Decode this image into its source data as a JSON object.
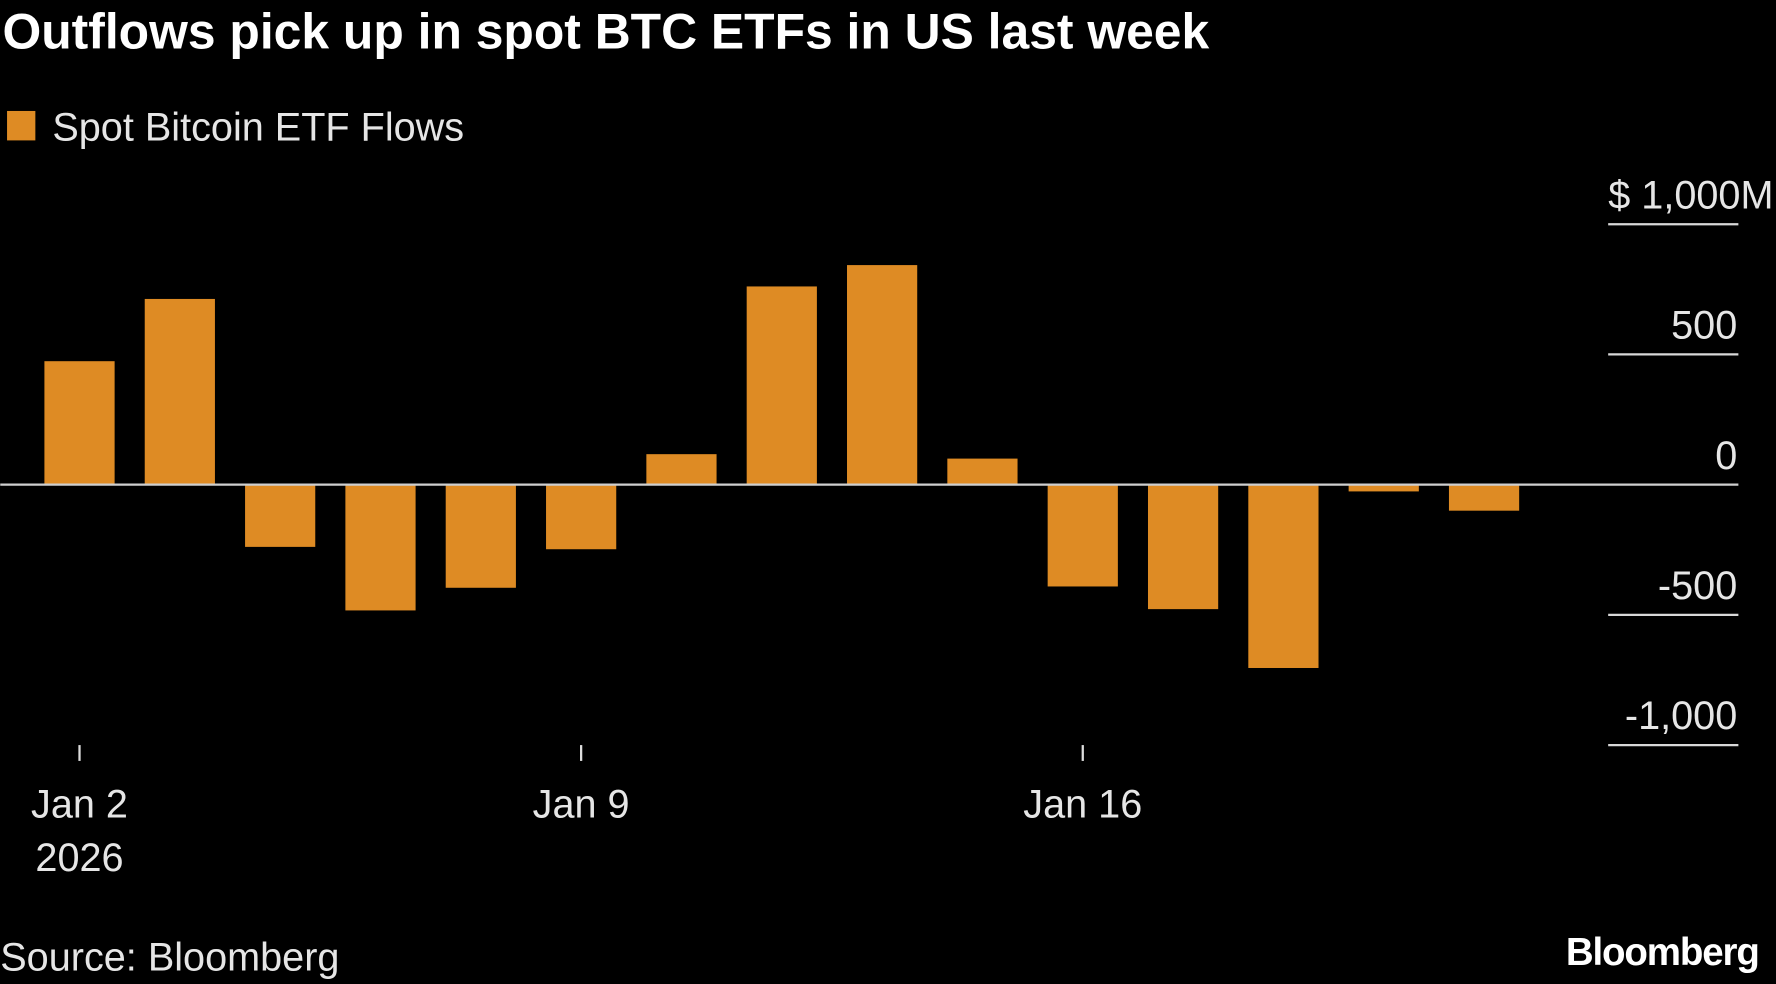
{
  "chart_data": {
    "type": "bar",
    "title": "Outflows pick up in spot BTC ETFs in US last week",
    "legend": [
      {
        "name": "Spot Bitcoin ETF Flows",
        "color": "#de8b24"
      }
    ],
    "legend_placement": "top-left",
    "unit": "$ M",
    "categories": [
      "2026-01-02",
      "2026-01-05",
      "2026-01-06",
      "2026-01-07",
      "2026-01-08",
      "2026-01-09",
      "2026-01-12",
      "2026-01-13",
      "2026-01-14",
      "2026-01-15",
      "2026-01-16",
      "2026-01-20",
      "2026-01-21",
      "2026-01-22",
      "2026-01-23"
    ],
    "series": [
      {
        "name": "Spot Bitcoin ETF Flows",
        "values": [
          474,
          713,
          -239,
          -483,
          -396,
          -248,
          117,
          761,
          843,
          100,
          -391,
          -478,
          -704,
          -26,
          -100
        ]
      }
    ],
    "ylim": [
      -1000,
      1000
    ],
    "y_ticks": [
      {
        "value": 1000,
        "label": "$ 1,000M"
      },
      {
        "value": 500,
        "label": "500"
      },
      {
        "value": 0,
        "label": "0"
      },
      {
        "value": -500,
        "label": "-500"
      },
      {
        "value": -1000,
        "label": "-1,000"
      }
    ],
    "x_ticks": [
      {
        "category": "2026-01-02",
        "label": "Jan 2",
        "sublabel": "2026"
      },
      {
        "category": "2026-01-09",
        "label": "Jan 9",
        "sublabel": ""
      },
      {
        "category": "2026-01-16",
        "label": "Jan 16",
        "sublabel": ""
      }
    ],
    "y_axis_side": "right",
    "grid": false,
    "bar_color": "#de8b24"
  },
  "footer": {
    "source": "Source: Bloomberg",
    "brand": "Bloomberg"
  }
}
